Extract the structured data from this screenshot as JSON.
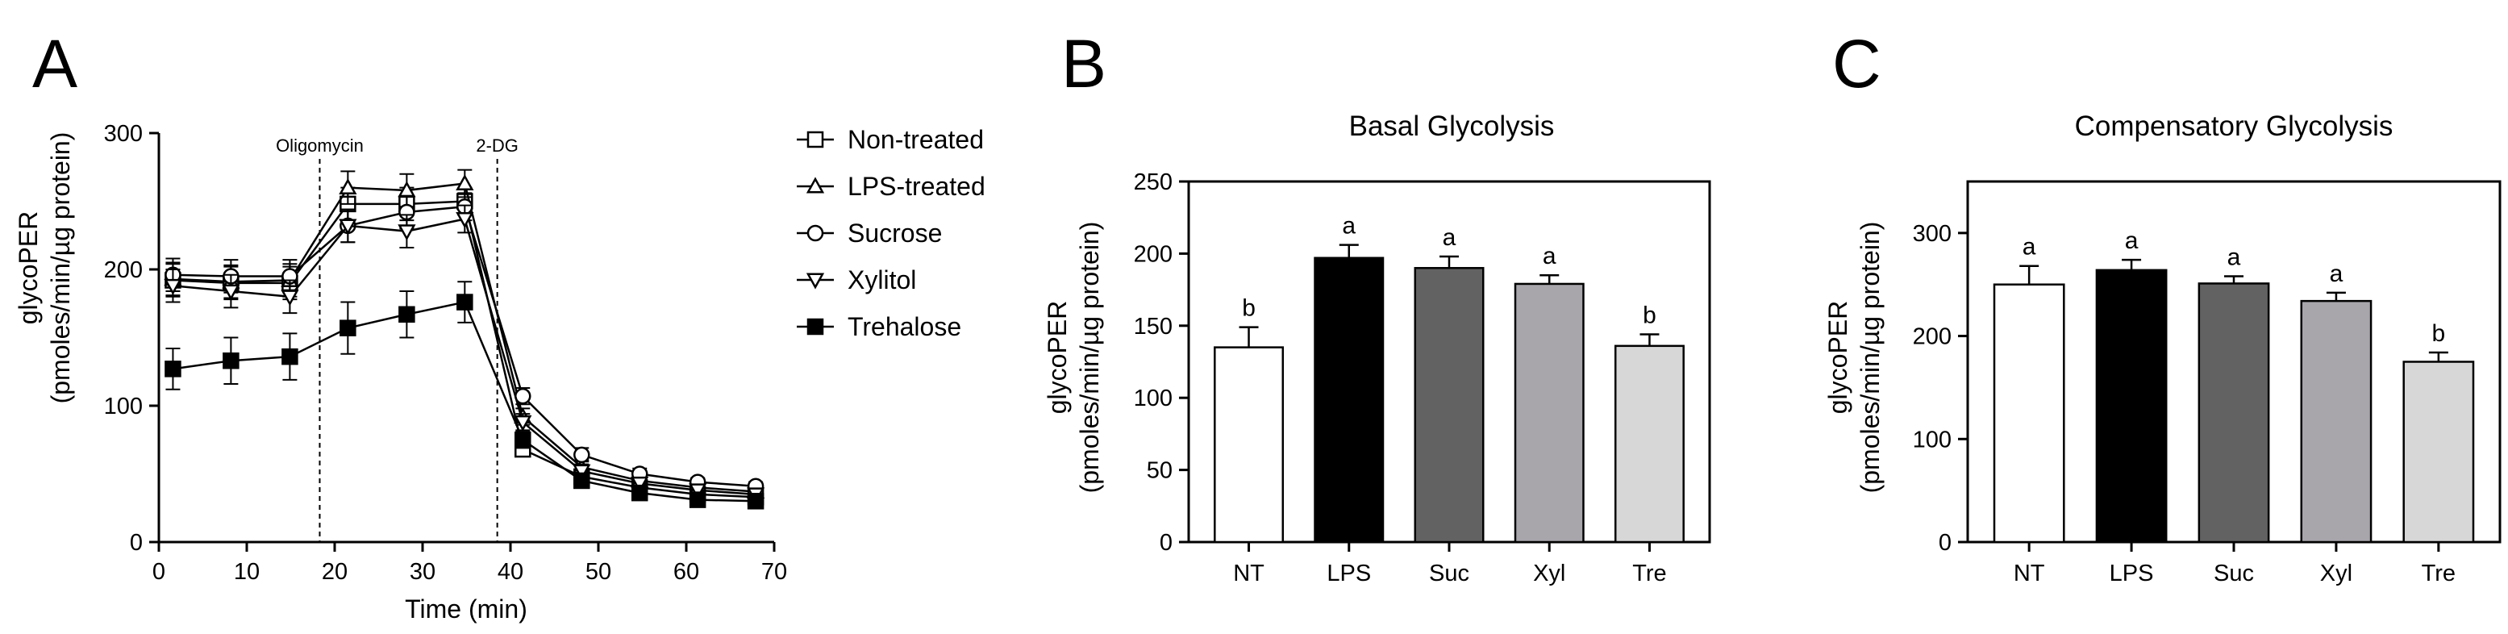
{
  "chart_data": [
    {
      "panel": "A",
      "type": "line",
      "title": "",
      "xlabel": "Time (min)",
      "ylabel_line1": "glycoPER",
      "ylabel_line2": "(pmoles/min/µg protein)",
      "xlim": [
        0,
        70
      ],
      "ylim": [
        0,
        300
      ],
      "xticks": [
        0,
        10,
        20,
        30,
        40,
        50,
        60,
        70
      ],
      "yticks": [
        0,
        100,
        200,
        300
      ],
      "annotations": [
        {
          "label": "Oligomycin",
          "x": 18.3
        },
        {
          "label": "2-DG",
          "x": 38.5
        }
      ],
      "x": [
        1.6,
        8.2,
        14.9,
        21.5,
        28.2,
        34.8,
        41.4,
        48.1,
        54.7,
        61.3,
        67.9
      ],
      "series": [
        {
          "name": "Non-treated",
          "marker": "square-open",
          "values": [
            192,
            190,
            190,
            248,
            248,
            250,
            68,
            48,
            40,
            35,
            33
          ],
          "errors": [
            12,
            12,
            12,
            12,
            12,
            10,
            5,
            4,
            3,
            3,
            3
          ]
        },
        {
          "name": "LPS-treated",
          "marker": "triangle-up-open",
          "values": [
            193,
            191,
            192,
            260,
            258,
            263,
            92,
            55,
            45,
            40,
            37
          ],
          "errors": [
            12,
            12,
            12,
            12,
            12,
            10,
            6,
            5,
            4,
            3,
            3
          ]
        },
        {
          "name": "Sucrose",
          "marker": "circle-open",
          "values": [
            196,
            195,
            195,
            232,
            242,
            246,
            107,
            64,
            50,
            44,
            41
          ],
          "errors": [
            12,
            12,
            12,
            12,
            12,
            10,
            6,
            5,
            4,
            3,
            3
          ]
        },
        {
          "name": "Xylitol",
          "marker": "triangle-down-open",
          "values": [
            188,
            184,
            180,
            232,
            228,
            237,
            88,
            52,
            43,
            38,
            35
          ],
          "errors": [
            12,
            12,
            12,
            12,
            12,
            10,
            6,
            5,
            4,
            3,
            3
          ]
        },
        {
          "name": "Trehalose",
          "marker": "square-filled",
          "values": [
            127,
            133,
            136,
            157,
            167,
            176,
            75,
            45,
            36,
            31,
            30
          ],
          "errors": [
            15,
            17,
            17,
            19,
            17,
            15,
            6,
            4,
            3,
            3,
            3
          ]
        }
      ]
    },
    {
      "panel": "B",
      "type": "bar",
      "title": "Basal Glycolysis",
      "xlabel": "",
      "ylabel_line1": "glycoPER",
      "ylabel_line2": "(pmoles/min/µg protein)",
      "ylim": [
        0,
        250
      ],
      "yticks": [
        0,
        50,
        100,
        150,
        200,
        250
      ],
      "categories": [
        "NT",
        "LPS",
        "Suc",
        "Xyl",
        "Tre"
      ],
      "values": [
        135,
        197,
        190,
        179,
        136
      ],
      "errors": [
        14,
        9,
        8,
        6,
        8
      ],
      "significance": [
        "b",
        "a",
        "a",
        "a",
        "b"
      ],
      "bar_colors": [
        "#ffffff",
        "#000000",
        "#626262",
        "#a8a6ab",
        "#d7d7d7"
      ]
    },
    {
      "panel": "C",
      "type": "bar",
      "title": "Compensatory Glycolysis",
      "xlabel": "",
      "ylabel_line1": "glycoPER",
      "ylabel_line2": "(pmoles/min/µg protein)",
      "ylim": [
        0,
        350
      ],
      "yticks": [
        0,
        100,
        200,
        300
      ],
      "categories": [
        "NT",
        "LPS",
        "Suc",
        "Xyl",
        "Tre"
      ],
      "values": [
        250,
        264,
        251,
        234,
        175
      ],
      "errors": [
        18,
        10,
        7,
        8,
        9
      ],
      "significance": [
        "a",
        "a",
        "a",
        "a",
        "b"
      ],
      "bar_colors": [
        "#ffffff",
        "#000000",
        "#626262",
        "#a8a6ab",
        "#d7d7d7"
      ]
    }
  ]
}
